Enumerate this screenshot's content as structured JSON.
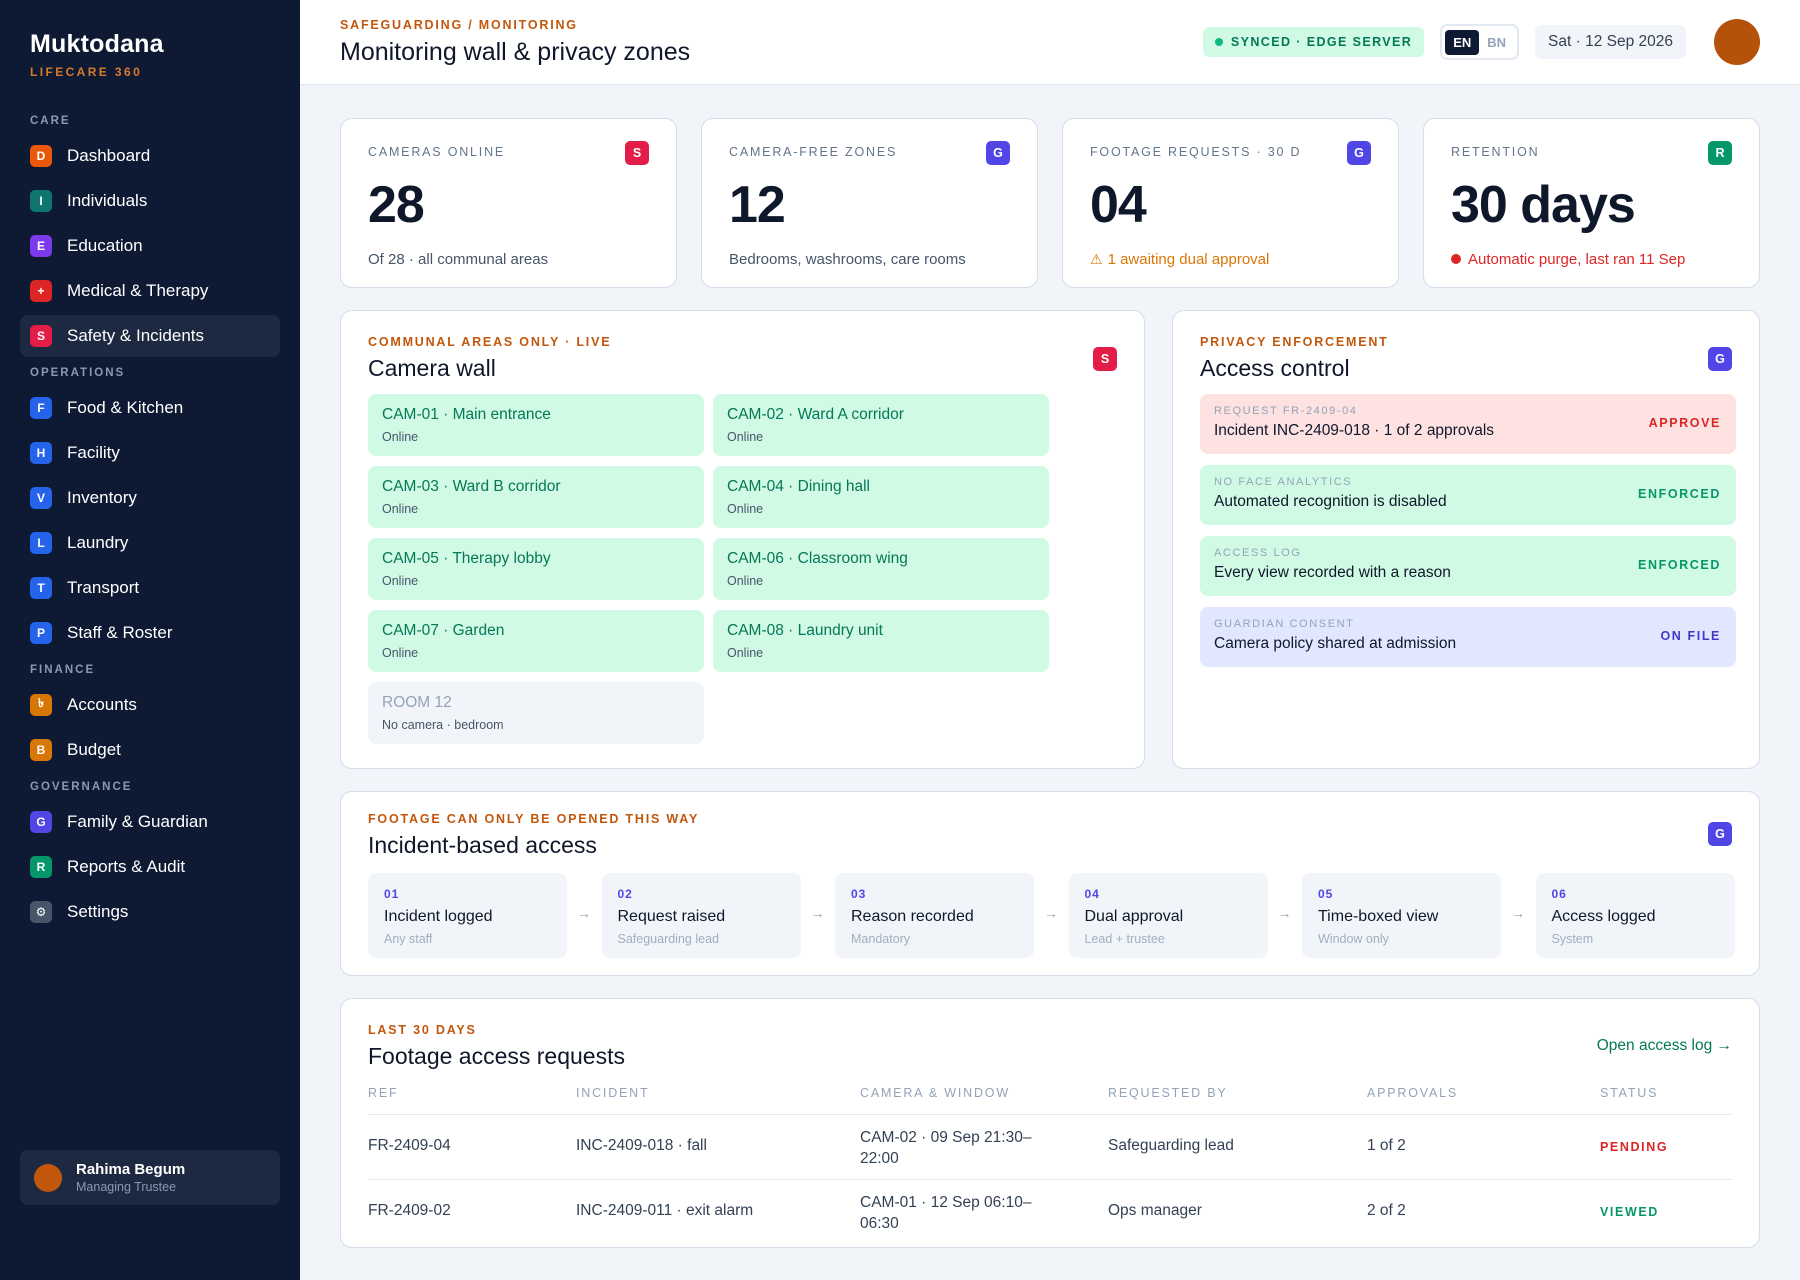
{
  "sidebar": {
    "brand": "Muktodana",
    "brand_sub": "LIFECARE 360",
    "sections": [
      {
        "label": "CARE",
        "items": [
          {
            "icon": "D",
            "label": "Dashboard",
            "color": "#ea580c"
          },
          {
            "icon": "I",
            "label": "Individuals",
            "color": "#0f766e"
          },
          {
            "icon": "E",
            "label": "Education",
            "color": "#7c3aed"
          },
          {
            "icon": "+",
            "label": "Medical & Therapy",
            "color": "#dc2626"
          },
          {
            "icon": "S",
            "label": "Safety & Incidents",
            "color": "#e11d48",
            "active": true
          }
        ]
      },
      {
        "label": "OPERATIONS",
        "items": [
          {
            "icon": "F",
            "label": "Food & Kitchen",
            "color": "#2563eb"
          },
          {
            "icon": "H",
            "label": "Facility",
            "color": "#2563eb"
          },
          {
            "icon": "V",
            "label": "Inventory",
            "color": "#2563eb"
          },
          {
            "icon": "L",
            "label": "Laundry",
            "color": "#2563eb"
          },
          {
            "icon": "T",
            "label": "Transport",
            "color": "#2563eb"
          },
          {
            "icon": "P",
            "label": "Staff & Roster",
            "color": "#2563eb"
          }
        ]
      },
      {
        "label": "FINANCE",
        "items": [
          {
            "icon": "৳",
            "label": "Accounts",
            "color": "#d97706"
          },
          {
            "icon": "B",
            "label": "Budget",
            "color": "#d97706"
          }
        ]
      },
      {
        "label": "GOVERNANCE",
        "items": [
          {
            "icon": "G",
            "label": "Family & Guardian",
            "color": "#4f46e5"
          },
          {
            "icon": "R",
            "label": "Reports & Audit",
            "color": "#059669"
          },
          {
            "icon": "⚙",
            "label": "Settings",
            "color": "#475569"
          }
        ]
      }
    ],
    "user": {
      "name": "Rahima Begum",
      "role": "Managing Trustee"
    }
  },
  "header": {
    "crumb": "SAFEGUARDING / MONITORING",
    "title": "Monitoring wall & privacy zones",
    "sync": "SYNCED · EDGE SERVER",
    "lang_on": "EN",
    "lang_off": "BN",
    "date": "Sat · 12 Sep 2026"
  },
  "kpis": [
    {
      "label": "CAMERAS ONLINE",
      "badge": "S",
      "badge_color": "#e11d48",
      "value": "28",
      "sub": "Of 28 · all communal areas"
    },
    {
      "label": "CAMERA-FREE ZONES",
      "badge": "G",
      "badge_color": "#4f46e5",
      "value": "12",
      "sub": "Bedrooms, washrooms, care rooms"
    },
    {
      "label": "FOOTAGE REQUESTS · 30 D",
      "badge": "G",
      "badge_color": "#4f46e5",
      "value": "04",
      "sub": "1 awaiting dual approval",
      "sub_color": "#d97706"
    },
    {
      "label": "RETENTION",
      "badge": "R",
      "badge_color": "#059669",
      "value": "30 days",
      "sub": "Automatic purge, last ran 11 Sep",
      "sub_color": "#dc2626"
    }
  ],
  "camwall": {
    "eyebrow": "COMMUNAL AREAS ONLY · LIVE",
    "title": "Camera wall",
    "badge": "S",
    "cams": [
      {
        "name": "CAM-01 · Main entrance",
        "status": "Online"
      },
      {
        "name": "CAM-02 · Ward A corridor",
        "status": "Online"
      },
      {
        "name": "CAM-03 · Ward B corridor",
        "status": "Online"
      },
      {
        "name": "CAM-04 · Dining hall",
        "status": "Online"
      },
      {
        "name": "CAM-05 · Therapy lobby",
        "status": "Online"
      },
      {
        "name": "CAM-06 · Classroom wing",
        "status": "Online"
      },
      {
        "name": "CAM-07 · Garden",
        "status": "Online"
      },
      {
        "name": "CAM-08 · Laundry unit",
        "status": "Online"
      },
      {
        "name": "ROOM 12",
        "status": "No camera · bedroom",
        "none": true
      }
    ]
  },
  "access": {
    "eyebrow": "PRIVACY ENFORCEMENT",
    "title": "Access control",
    "badge": "G",
    "rows": [
      {
        "label": "REQUEST FR-2409-04",
        "text": "Incident INC-2409-018 · 1 of 2 approvals",
        "status": "APPROVE",
        "bg": "#fee2e2",
        "color": "#dc2626"
      },
      {
        "label": "NO FACE ANALYTICS",
        "text": "Automated recognition is disabled",
        "status": "ENFORCED",
        "bg": "#d1fae5",
        "color": "#059669"
      },
      {
        "label": "ACCESS LOG",
        "text": "Every view recorded with a reason",
        "status": "ENFORCED",
        "bg": "#d1fae5",
        "color": "#059669"
      },
      {
        "label": "GUARDIAN CONSENT",
        "text": "Camera policy shared at admission",
        "status": "ON FILE",
        "bg": "#e0e7ff",
        "color": "#4338ca"
      }
    ]
  },
  "flow": {
    "eyebrow": "FOOTAGE CAN ONLY BE OPENED THIS WAY",
    "title": "Incident-based access",
    "badge": "G",
    "steps": [
      {
        "n": "01",
        "t": "Incident logged",
        "s": "Any staff"
      },
      {
        "n": "02",
        "t": "Request raised",
        "s": "Safeguarding lead"
      },
      {
        "n": "03",
        "t": "Reason recorded",
        "s": "Mandatory"
      },
      {
        "n": "04",
        "t": "Dual approval",
        "s": "Lead + trustee"
      },
      {
        "n": "05",
        "t": "Time-boxed view",
        "s": "Window only"
      },
      {
        "n": "06",
        "t": "Access logged",
        "s": "System"
      }
    ]
  },
  "requests": {
    "eyebrow": "LAST 30 DAYS",
    "title": "Footage access requests",
    "link": "Open access log →",
    "columns": [
      "REF",
      "INCIDENT",
      "CAMERA & WINDOW",
      "REQUESTED BY",
      "APPROVALS",
      "STATUS"
    ],
    "rows": [
      {
        "ref": "FR-2409-04",
        "incident": "INC-2409-018 · fall",
        "camera_1": "CAM-02 · 09 Sep 21:30–",
        "camera_2": "22:00",
        "by": "Safeguarding lead",
        "approvals": "1 of 2",
        "status": "PENDING",
        "status_color": "#dc2626"
      },
      {
        "ref": "FR-2409-02",
        "incident": "INC-2409-011 · exit alarm",
        "camera_1": "CAM-01 · 12 Sep 06:10–",
        "camera_2": "06:30",
        "by": "Ops manager",
        "approvals": "2 of 2",
        "status": "VIEWED",
        "status_color": "#059669"
      }
    ]
  }
}
